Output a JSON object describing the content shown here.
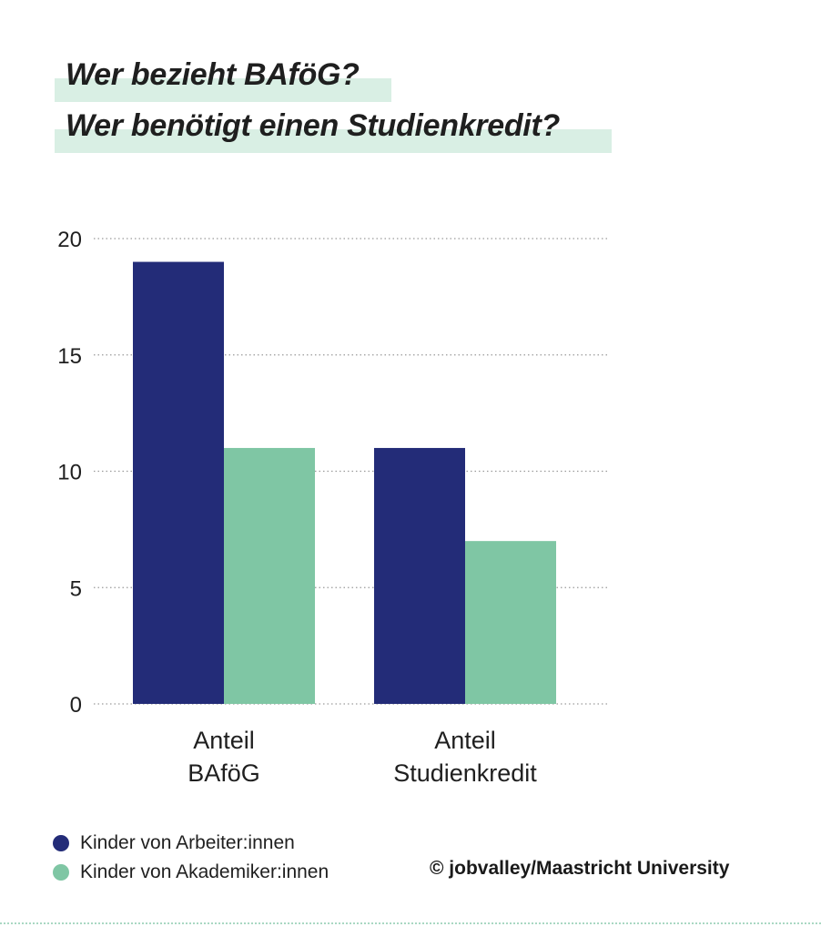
{
  "title_lines": [
    "Wer bezieht BAföG?",
    "Wer benötigt einen Studienkredit?"
  ],
  "colors": {
    "series_1": "#232c78",
    "series_2": "#7fc6a4",
    "highlight": "#d9efe4",
    "grid": "#9a9a9a"
  },
  "legend": [
    {
      "label": "Kinder von Arbeiter:innen",
      "color": "#232c78"
    },
    {
      "label": "Kinder von Akademiker:innen",
      "color": "#7fc6a4"
    }
  ],
  "copyright": "© jobvalley/Maastricht University",
  "chart_data": {
    "type": "bar",
    "categories": [
      [
        "Anteil",
        "BAföG"
      ],
      [
        "Anteil",
        "Studienkredit"
      ]
    ],
    "series": [
      {
        "name": "Kinder von Arbeiter:innen",
        "values": [
          19,
          11
        ]
      },
      {
        "name": "Kinder von Akademiker:innen",
        "values": [
          11,
          7
        ]
      }
    ],
    "ylim": [
      0,
      20
    ],
    "yticks": [
      0,
      5,
      10,
      15,
      20
    ],
    "grid": true,
    "grid_style": "dotted",
    "legend_position": "bottom-left"
  }
}
